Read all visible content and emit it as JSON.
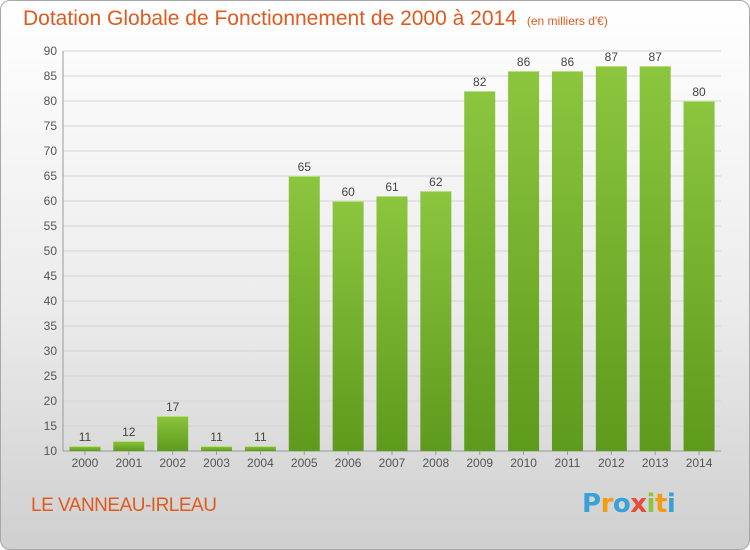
{
  "chart_data": {
    "type": "bar",
    "title": "Dotation Globale de Fonctionnement de 2000 à 2014",
    "subtitle": "(en milliers d'€)",
    "categories": [
      "2000",
      "2001",
      "2002",
      "2003",
      "2004",
      "2005",
      "2006",
      "2007",
      "2008",
      "2009",
      "2010",
      "2011",
      "2012",
      "2013",
      "2014"
    ],
    "values": [
      11,
      12,
      17,
      11,
      11,
      65,
      60,
      61,
      62,
      82,
      86,
      86,
      87,
      87,
      80
    ],
    "ylim": [
      10,
      90
    ],
    "yticks": [
      10,
      15,
      20,
      25,
      30,
      35,
      40,
      45,
      50,
      55,
      60,
      65,
      70,
      75,
      80,
      85,
      90
    ],
    "xlabel": "",
    "ylabel": "",
    "grid": true,
    "data_labels": true,
    "bar_color": "#8cc63f",
    "bar_color_dark": "#5e9a1c",
    "title_color": "#e05a1e"
  },
  "footer": {
    "commune": "LE VANNEAU-IRLEAU",
    "logo_text": "Proxiti",
    "logo_colors": [
      "#3aa0d8",
      "#f39c12",
      "#3aa0d8",
      "#e74c3c",
      "#8cc63f",
      "#f39c12",
      "#3aa0d8"
    ]
  }
}
